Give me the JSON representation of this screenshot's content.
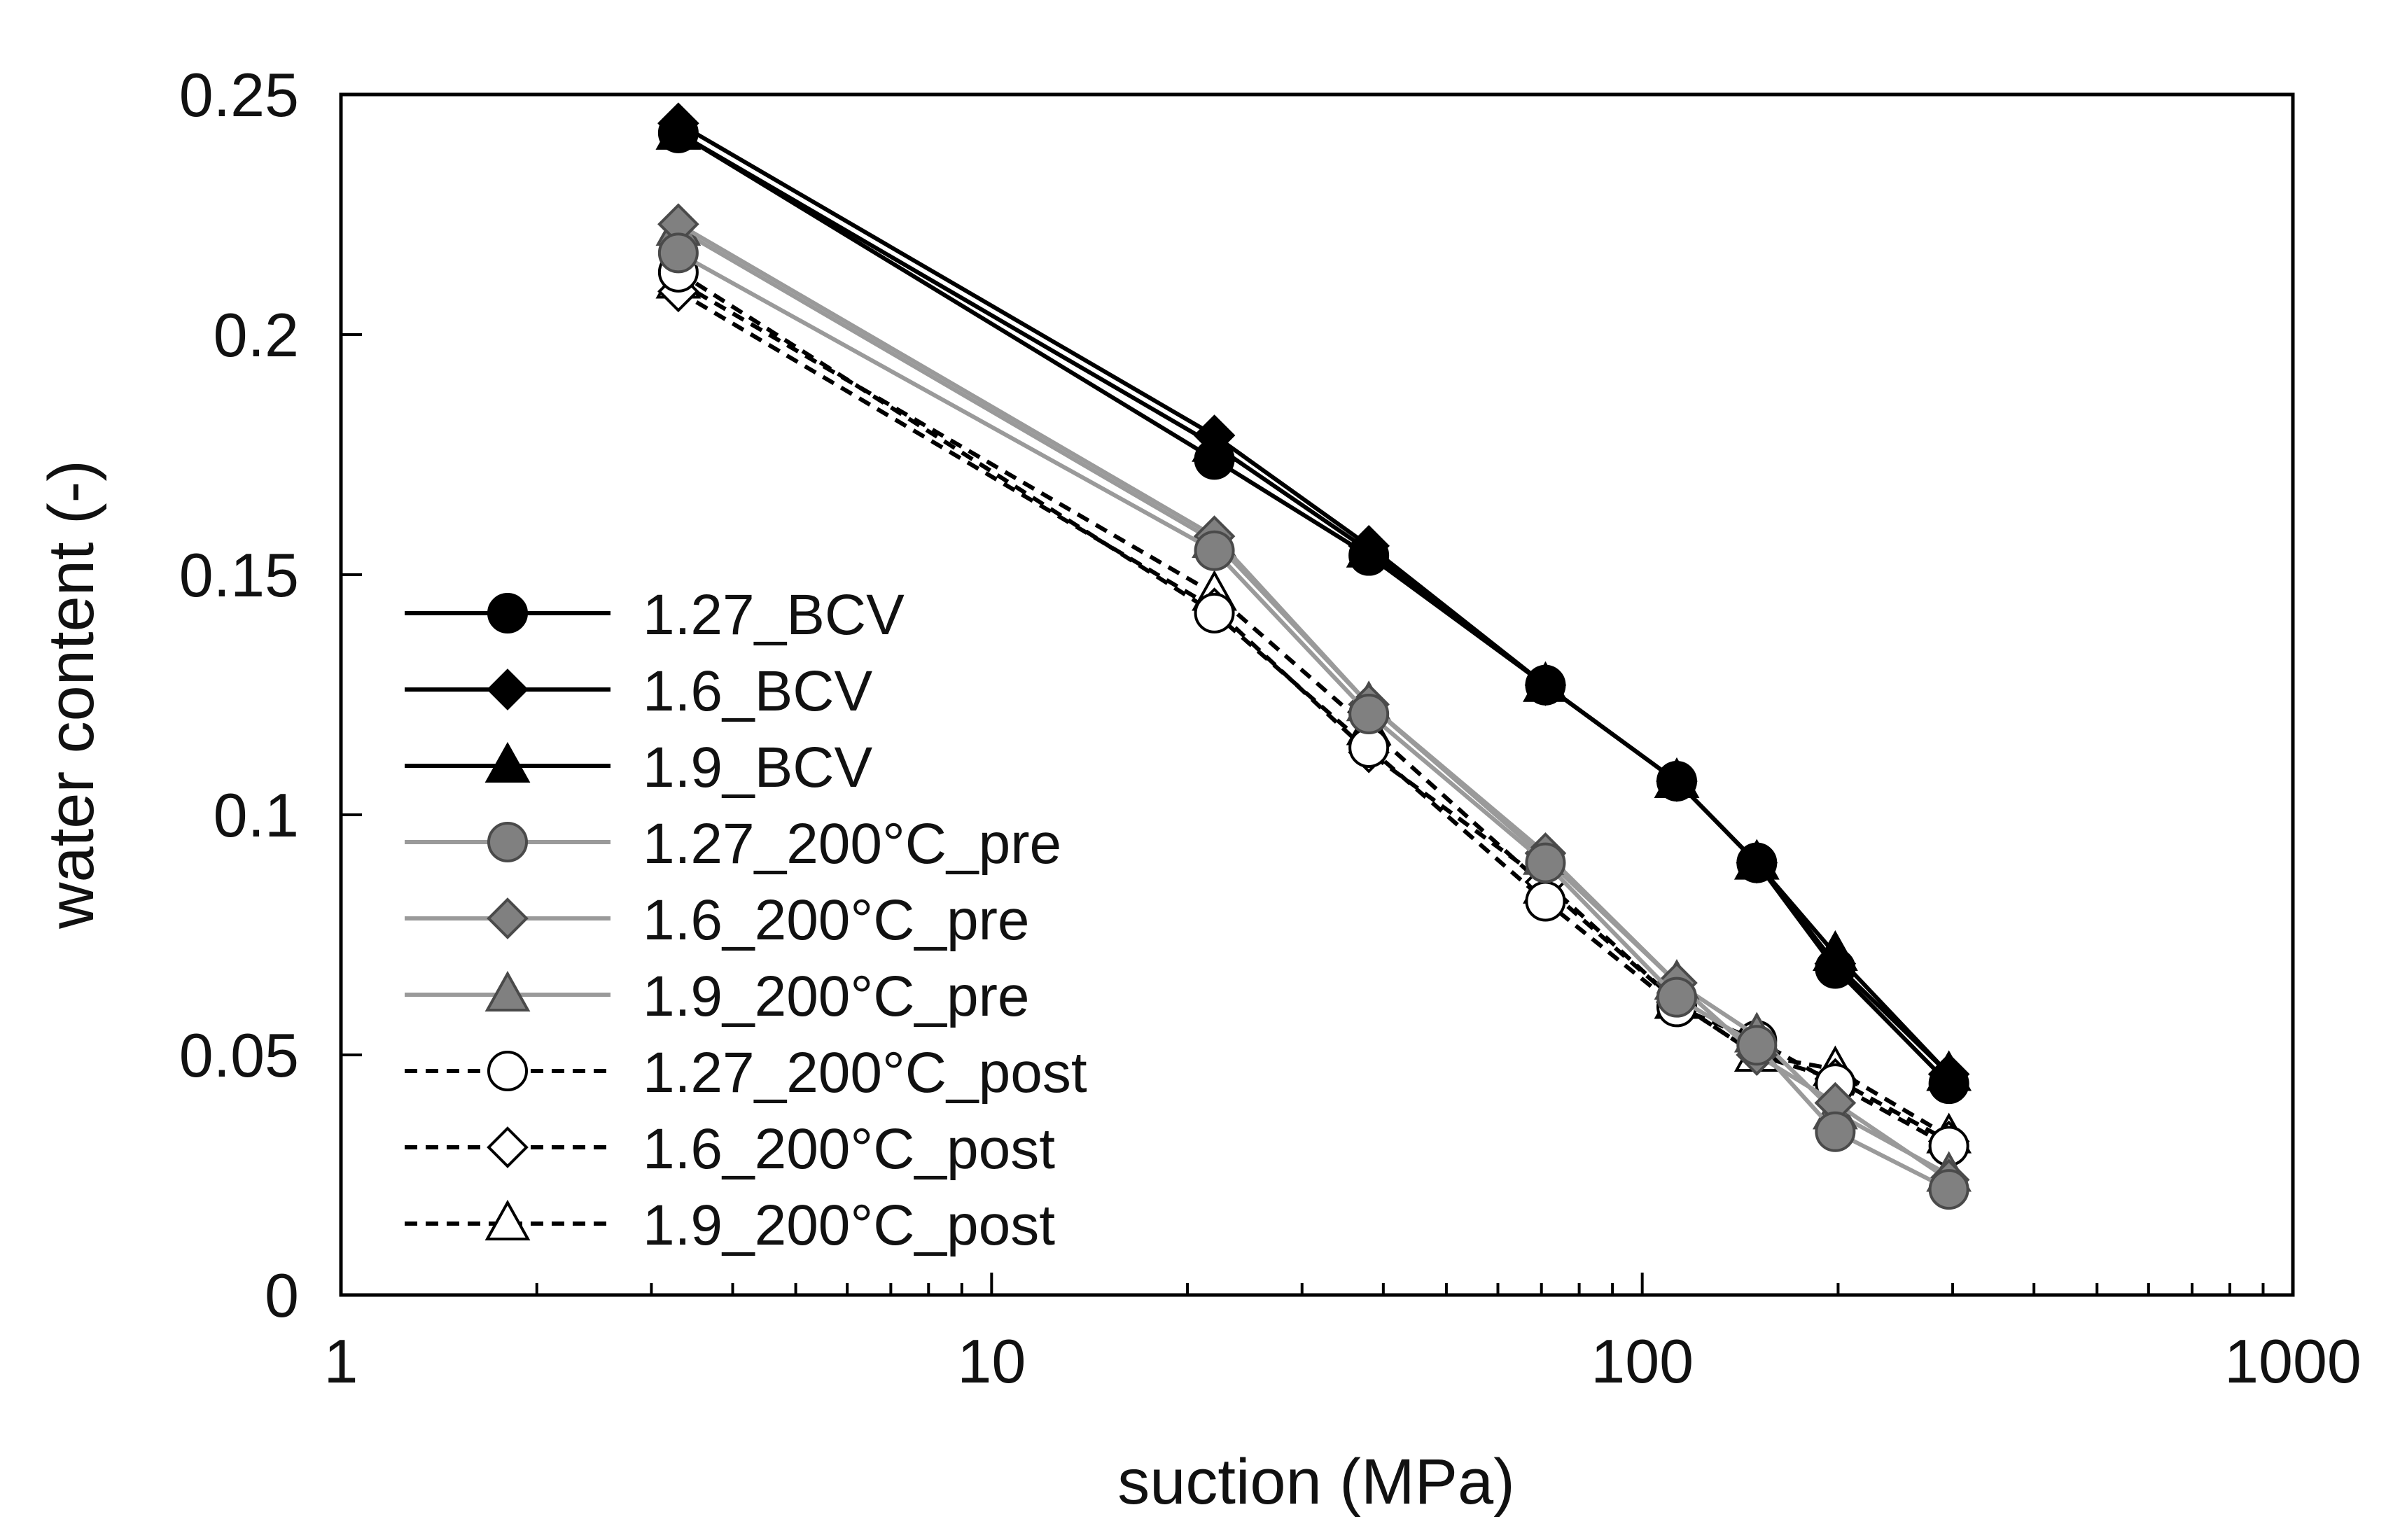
{
  "chart_data": {
    "type": "scatter",
    "title": "",
    "xlabel": "suction (MPa)",
    "ylabel": "water content (-)",
    "xscale": "log",
    "xlim": [
      1,
      1000
    ],
    "ylim": [
      0,
      0.25
    ],
    "x_ticks": [
      1,
      10,
      100,
      1000
    ],
    "x_tick_labels": [
      "1",
      "10",
      "100",
      "1000"
    ],
    "y_ticks": [
      0,
      0.05,
      0.1,
      0.15,
      0.2,
      0.25
    ],
    "y_tick_labels": [
      "0",
      "0.05",
      "0.1",
      "0.15",
      "0.2",
      "0.25"
    ],
    "grid": false,
    "legend_position": "lower-left",
    "x": [
      3.3,
      22,
      38,
      71,
      113,
      150,
      198,
      296
    ],
    "series": [
      {
        "name": "1.27_BCV",
        "marker": "circle",
        "fill": "#000000",
        "stroke": "#000000",
        "line": "#000000",
        "dash": "solid",
        "values": [
          0.242,
          0.174,
          0.154,
          0.127,
          0.107,
          0.09,
          0.068,
          0.044
        ]
      },
      {
        "name": "1.6_BCV",
        "marker": "diamond",
        "fill": "#000000",
        "stroke": "#000000",
        "line": "#000000",
        "dash": "solid",
        "values": [
          0.244,
          0.179,
          0.156,
          0.127,
          0.107,
          0.09,
          0.069,
          0.046
        ]
      },
      {
        "name": "1.9_BCV",
        "marker": "triangle",
        "fill": "#000000",
        "stroke": "#000000",
        "line": "#000000",
        "dash": "solid",
        "values": [
          0.242,
          0.177,
          0.155,
          0.127,
          0.107,
          0.09,
          0.071,
          0.046
        ]
      },
      {
        "name": "1.27_200°C_pre",
        "marker": "circle",
        "fill": "#808080",
        "stroke": "#4a4a4a",
        "line": "#9a9a9a",
        "dash": "solid",
        "values": [
          0.217,
          0.155,
          0.121,
          0.09,
          0.062,
          0.052,
          0.034,
          0.022
        ]
      },
      {
        "name": "1.6_200°C_pre",
        "marker": "diamond",
        "fill": "#808080",
        "stroke": "#4a4a4a",
        "line": "#9a9a9a",
        "dash": "solid",
        "values": [
          0.223,
          0.158,
          0.123,
          0.092,
          0.065,
          0.05,
          0.04,
          0.024
        ]
      },
      {
        "name": "1.9_200°C_pre",
        "marker": "triangle",
        "fill": "#808080",
        "stroke": "#4a4a4a",
        "line": "#9a9a9a",
        "dash": "solid",
        "values": [
          0.222,
          0.157,
          0.123,
          0.091,
          0.065,
          0.054,
          0.038,
          0.025
        ]
      },
      {
        "name": "1.27_200°C_post",
        "marker": "circle",
        "fill": "#ffffff",
        "stroke": "#000000",
        "line": "#000000",
        "dash": "dashed",
        "values": [
          0.213,
          0.142,
          0.114,
          0.082,
          0.06,
          0.053,
          0.044,
          0.031
        ]
      },
      {
        "name": "1.6_200°C_post",
        "marker": "diamond",
        "fill": "#ffffff",
        "stroke": "#000000",
        "line": "#000000",
        "dash": "dashed",
        "values": [
          0.209,
          0.143,
          0.113,
          0.086,
          0.061,
          0.05,
          0.045,
          0.032
        ]
      },
      {
        "name": "1.9_200°C_post",
        "marker": "triangle",
        "fill": "#ffffff",
        "stroke": "#000000",
        "line": "#000000",
        "dash": "dashed",
        "values": [
          0.211,
          0.146,
          0.118,
          0.085,
          0.061,
          0.05,
          0.047,
          0.033
        ]
      }
    ]
  }
}
